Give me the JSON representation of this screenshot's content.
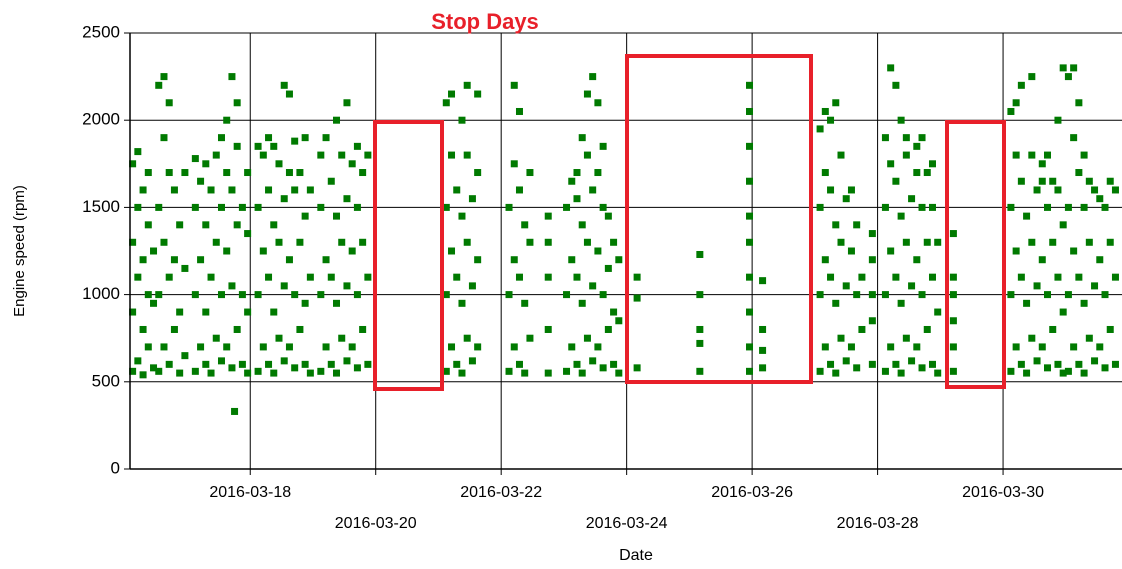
{
  "chart_data": {
    "type": "scatter",
    "title": "Stop Days",
    "x_label": "Date",
    "y_label": "Engine speed (rpm)",
    "color": "#007a00",
    "grid": true,
    "xlim": [
      "2016-03-16T02:00",
      "2016-03-31T21:30"
    ],
    "xticks": [
      "2016-03-18",
      "2016-03-20",
      "2016-03-22",
      "2016-03-24",
      "2016-03-26",
      "2016-03-28",
      "2016-03-30"
    ],
    "ylim": [
      0,
      2500
    ],
    "yticks": [
      0,
      500,
      1000,
      1500,
      2000,
      2500
    ],
    "x": [
      "2016-03-16T03:00",
      "2016-03-16T03:00",
      "2016-03-16T03:00",
      "2016-03-16T03:00",
      "2016-03-16T05:00",
      "2016-03-16T05:00",
      "2016-03-16T05:00",
      "2016-03-16T05:00",
      "2016-03-16T07:00",
      "2016-03-16T07:00",
      "2016-03-16T07:00",
      "2016-03-16T07:00",
      "2016-03-16T09:00",
      "2016-03-16T09:00",
      "2016-03-16T09:00",
      "2016-03-16T09:00",
      "2016-03-16T11:00",
      "2016-03-16T11:00",
      "2016-03-16T11:00",
      "2016-03-16T13:00",
      "2016-03-16T13:00",
      "2016-03-16T13:00",
      "2016-03-16T13:00",
      "2016-03-16T15:00",
      "2016-03-16T15:00",
      "2016-03-16T15:00",
      "2016-03-16T15:00",
      "2016-03-16T17:00",
      "2016-03-16T17:00",
      "2016-03-16T17:00",
      "2016-03-16T17:00",
      "2016-03-16T19:00",
      "2016-03-16T19:00",
      "2016-03-16T19:00",
      "2016-03-16T21:00",
      "2016-03-16T21:00",
      "2016-03-16T21:00",
      "2016-03-16T23:00",
      "2016-03-16T23:00",
      "2016-03-16T23:00",
      "2016-03-17T03:00",
      "2016-03-17T03:00",
      "2016-03-17T03:00",
      "2016-03-17T03:00",
      "2016-03-17T05:00",
      "2016-03-17T05:00",
      "2016-03-17T05:00",
      "2016-03-17T07:00",
      "2016-03-17T07:00",
      "2016-03-17T07:00",
      "2016-03-17T07:00",
      "2016-03-17T09:00",
      "2016-03-17T09:00",
      "2016-03-17T09:00",
      "2016-03-17T11:00",
      "2016-03-17T11:00",
      "2016-03-17T11:00",
      "2016-03-17T13:00",
      "2016-03-17T13:00",
      "2016-03-17T13:00",
      "2016-03-17T13:00",
      "2016-03-17T15:00",
      "2016-03-17T15:00",
      "2016-03-17T15:00",
      "2016-03-17T15:00",
      "2016-03-17T17:00",
      "2016-03-17T17:00",
      "2016-03-17T17:00",
      "2016-03-17T17:00",
      "2016-03-17T18:00",
      "2016-03-17T19:00",
      "2016-03-17T19:00",
      "2016-03-17T19:00",
      "2016-03-17T19:00",
      "2016-03-17T21:00",
      "2016-03-17T21:00",
      "2016-03-17T21:00",
      "2016-03-17T23:00",
      "2016-03-17T23:00",
      "2016-03-17T23:00",
      "2016-03-17T23:00",
      "2016-03-18T03:00",
      "2016-03-18T03:00",
      "2016-03-18T03:00",
      "2016-03-18T03:00",
      "2016-03-18T05:00",
      "2016-03-18T05:00",
      "2016-03-18T05:00",
      "2016-03-18T07:00",
      "2016-03-18T07:00",
      "2016-03-18T07:00",
      "2016-03-18T07:00",
      "2016-03-18T09:00",
      "2016-03-18T09:00",
      "2016-03-18T09:00",
      "2016-03-18T09:00",
      "2016-03-18T11:00",
      "2016-03-18T11:00",
      "2016-03-18T11:00",
      "2016-03-18T13:00",
      "2016-03-18T13:00",
      "2016-03-18T13:00",
      "2016-03-18T13:00",
      "2016-03-18T15:00",
      "2016-03-18T15:00",
      "2016-03-18T15:00",
      "2016-03-18T15:00",
      "2016-03-18T17:00",
      "2016-03-18T17:00",
      "2016-03-18T17:00",
      "2016-03-18T17:00",
      "2016-03-18T19:00",
      "2016-03-18T19:00",
      "2016-03-18T19:00",
      "2016-03-18T21:00",
      "2016-03-18T21:00",
      "2016-03-18T21:00",
      "2016-03-18T21:00",
      "2016-03-18T23:00",
      "2016-03-18T23:00",
      "2016-03-18T23:00",
      "2016-03-19T03:00",
      "2016-03-19T03:00",
      "2016-03-19T03:00",
      "2016-03-19T03:00",
      "2016-03-19T05:00",
      "2016-03-19T05:00",
      "2016-03-19T05:00",
      "2016-03-19T07:00",
      "2016-03-19T07:00",
      "2016-03-19T07:00",
      "2016-03-19T09:00",
      "2016-03-19T09:00",
      "2016-03-19T09:00",
      "2016-03-19T09:00",
      "2016-03-19T11:00",
      "2016-03-19T11:00",
      "2016-03-19T11:00",
      "2016-03-19T13:00",
      "2016-03-19T13:00",
      "2016-03-19T13:00",
      "2016-03-19T13:00",
      "2016-03-19T15:00",
      "2016-03-19T15:00",
      "2016-03-19T15:00",
      "2016-03-19T17:00",
      "2016-03-19T17:00",
      "2016-03-19T17:00",
      "2016-03-19T17:00",
      "2016-03-19T19:00",
      "2016-03-19T19:00",
      "2016-03-19T19:00",
      "2016-03-19T21:00",
      "2016-03-19T21:00",
      "2016-03-19T21:00",
      "2016-03-21T03:00",
      "2016-03-21T03:00",
      "2016-03-21T03:00",
      "2016-03-21T03:00",
      "2016-03-21T05:00",
      "2016-03-21T05:00",
      "2016-03-21T05:00",
      "2016-03-21T05:00",
      "2016-03-21T07:00",
      "2016-03-21T07:00",
      "2016-03-21T07:00",
      "2016-03-21T09:00",
      "2016-03-21T09:00",
      "2016-03-21T09:00",
      "2016-03-21T09:00",
      "2016-03-21T11:00",
      "2016-03-21T11:00",
      "2016-03-21T11:00",
      "2016-03-21T11:00",
      "2016-03-21T13:00",
      "2016-03-21T13:00",
      "2016-03-21T13:00",
      "2016-03-21T15:00",
      "2016-03-21T15:00",
      "2016-03-21T15:00",
      "2016-03-21T15:00",
      "2016-03-22T03:00",
      "2016-03-22T03:00",
      "2016-03-22T03:00",
      "2016-03-22T05:00",
      "2016-03-22T05:00",
      "2016-03-22T05:00",
      "2016-03-22T05:00",
      "2016-03-22T07:00",
      "2016-03-22T07:00",
      "2016-03-22T07:00",
      "2016-03-22T07:00",
      "2016-03-22T09:00",
      "2016-03-22T09:00",
      "2016-03-22T09:00",
      "2016-03-22T11:00",
      "2016-03-22T11:00",
      "2016-03-22T11:00",
      "2016-03-22T18:00",
      "2016-03-22T18:00",
      "2016-03-22T18:00",
      "2016-03-22T18:00",
      "2016-03-22T18:00",
      "2016-03-23T01:00",
      "2016-03-23T01:00",
      "2016-03-23T01:00",
      "2016-03-23T03:00",
      "2016-03-23T03:00",
      "2016-03-23T03:00",
      "2016-03-23T05:00",
      "2016-03-23T05:00",
      "2016-03-23T05:00",
      "2016-03-23T05:00",
      "2016-03-23T07:00",
      "2016-03-23T07:00",
      "2016-03-23T07:00",
      "2016-03-23T07:00",
      "2016-03-23T09:00",
      "2016-03-23T09:00",
      "2016-03-23T09:00",
      "2016-03-23T09:00",
      "2016-03-23T11:00",
      "2016-03-23T11:00",
      "2016-03-23T11:00",
      "2016-03-23T11:00",
      "2016-03-23T13:00",
      "2016-03-23T13:00",
      "2016-03-23T13:00",
      "2016-03-23T13:00",
      "2016-03-23T15:00",
      "2016-03-23T15:00",
      "2016-03-23T15:00",
      "2016-03-23T15:00",
      "2016-03-23T17:00",
      "2016-03-23T17:00",
      "2016-03-23T17:00",
      "2016-03-23T19:00",
      "2016-03-23T19:00",
      "2016-03-23T19:00",
      "2016-03-23T21:00",
      "2016-03-23T21:00",
      "2016-03-23T21:00",
      "2016-03-24T04:00",
      "2016-03-24T04:00",
      "2016-03-24T04:00",
      "2016-03-25T04:00",
      "2016-03-25T04:00",
      "2016-03-25T04:00",
      "2016-03-25T04:00",
      "2016-03-25T04:00",
      "2016-03-25T23:00",
      "2016-03-25T23:00",
      "2016-03-25T23:00",
      "2016-03-25T23:00",
      "2016-03-25T23:00",
      "2016-03-25T23:00",
      "2016-03-25T23:00",
      "2016-03-25T23:00",
      "2016-03-25T23:00",
      "2016-03-25T23:00",
      "2016-03-26T04:00",
      "2016-03-26T04:00",
      "2016-03-26T04:00",
      "2016-03-26T04:00",
      "2016-03-27T02:00",
      "2016-03-27T02:00",
      "2016-03-27T02:00",
      "2016-03-27T02:00",
      "2016-03-27T04:00",
      "2016-03-27T04:00",
      "2016-03-27T04:00",
      "2016-03-27T04:00",
      "2016-03-27T06:00",
      "2016-03-27T06:00",
      "2016-03-27T06:00",
      "2016-03-27T06:00",
      "2016-03-27T08:00",
      "2016-03-27T08:00",
      "2016-03-27T08:00",
      "2016-03-27T08:00",
      "2016-03-27T10:00",
      "2016-03-27T10:00",
      "2016-03-27T10:00",
      "2016-03-27T12:00",
      "2016-03-27T12:00",
      "2016-03-27T12:00",
      "2016-03-27T14:00",
      "2016-03-27T14:00",
      "2016-03-27T14:00",
      "2016-03-27T16:00",
      "2016-03-27T16:00",
      "2016-03-27T16:00",
      "2016-03-27T18:00",
      "2016-03-27T18:00",
      "2016-03-27T22:00",
      "2016-03-27T22:00",
      "2016-03-27T22:00",
      "2016-03-27T22:00",
      "2016-03-27T22:00",
      "2016-03-28T03:00",
      "2016-03-28T03:00",
      "2016-03-28T03:00",
      "2016-03-28T03:00",
      "2016-03-28T05:00",
      "2016-03-28T05:00",
      "2016-03-28T05:00",
      "2016-03-28T05:00",
      "2016-03-28T07:00",
      "2016-03-28T07:00",
      "2016-03-28T07:00",
      "2016-03-28T07:00",
      "2016-03-28T09:00",
      "2016-03-28T09:00",
      "2016-03-28T09:00",
      "2016-03-28T09:00",
      "2016-03-28T11:00",
      "2016-03-28T11:00",
      "2016-03-28T11:00",
      "2016-03-28T11:00",
      "2016-03-28T13:00",
      "2016-03-28T13:00",
      "2016-03-28T13:00",
      "2016-03-28T15:00",
      "2016-03-28T15:00",
      "2016-03-28T15:00",
      "2016-03-28T15:00",
      "2016-03-28T17:00",
      "2016-03-28T17:00",
      "2016-03-28T17:00",
      "2016-03-28T17:00",
      "2016-03-28T19:00",
      "2016-03-28T19:00",
      "2016-03-28T19:00",
      "2016-03-28T21:00",
      "2016-03-28T21:00",
      "2016-03-28T21:00",
      "2016-03-28T21:00",
      "2016-03-28T23:00",
      "2016-03-28T23:00",
      "2016-03-28T23:00",
      "2016-03-29T05:00",
      "2016-03-29T05:00",
      "2016-03-29T05:00",
      "2016-03-29T05:00",
      "2016-03-29T05:00",
      "2016-03-29T05:00",
      "2016-03-30T03:00",
      "2016-03-30T03:00",
      "2016-03-30T03:00",
      "2016-03-30T03:00",
      "2016-03-30T05:00",
      "2016-03-30T05:00",
      "2016-03-30T05:00",
      "2016-03-30T05:00",
      "2016-03-30T07:00",
      "2016-03-30T07:00",
      "2016-03-30T07:00",
      "2016-03-30T07:00",
      "2016-03-30T09:00",
      "2016-03-30T09:00",
      "2016-03-30T09:00",
      "2016-03-30T11:00",
      "2016-03-30T11:00",
      "2016-03-30T11:00",
      "2016-03-30T11:00",
      "2016-03-30T13:00",
      "2016-03-30T13:00",
      "2016-03-30T13:00",
      "2016-03-30T15:00",
      "2016-03-30T15:00",
      "2016-03-30T15:00",
      "2016-03-30T15:00",
      "2016-03-30T17:00",
      "2016-03-30T17:00",
      "2016-03-30T17:00",
      "2016-03-30T17:00",
      "2016-03-30T19:00",
      "2016-03-30T19:00",
      "2016-03-30T19:00",
      "2016-03-30T21:00",
      "2016-03-30T21:00",
      "2016-03-30T21:00",
      "2016-03-30T21:00",
      "2016-03-30T23:00",
      "2016-03-30T23:00",
      "2016-03-30T23:00",
      "2016-03-30T23:00",
      "2016-03-31T01:00",
      "2016-03-31T01:00",
      "2016-03-31T01:00",
      "2016-03-31T01:00",
      "2016-03-31T03:00",
      "2016-03-31T03:00",
      "2016-03-31T03:00",
      "2016-03-31T03:00",
      "2016-03-31T05:00",
      "2016-03-31T05:00",
      "2016-03-31T05:00",
      "2016-03-31T05:00",
      "2016-03-31T07:00",
      "2016-03-31T07:00",
      "2016-03-31T07:00",
      "2016-03-31T07:00",
      "2016-03-31T09:00",
      "2016-03-31T09:00",
      "2016-03-31T09:00",
      "2016-03-31T11:00",
      "2016-03-31T11:00",
      "2016-03-31T11:00",
      "2016-03-31T13:00",
      "2016-03-31T13:00",
      "2016-03-31T13:00",
      "2016-03-31T15:00",
      "2016-03-31T15:00",
      "2016-03-31T15:00",
      "2016-03-31T17:00",
      "2016-03-31T17:00",
      "2016-03-31T17:00",
      "2016-03-31T19:00",
      "2016-03-31T19:00",
      "2016-03-31T19:00"
    ],
    "values": [
      560,
      900,
      1300,
      1750,
      620,
      1100,
      1500,
      1820,
      540,
      800,
      1200,
      1600,
      700,
      1000,
      1400,
      1700,
      580,
      950,
      1250,
      560,
      1000,
      1500,
      2200,
      700,
      1300,
      1900,
      2250,
      600,
      1100,
      1700,
      2100,
      800,
      1200,
      1600,
      550,
      900,
      1400,
      650,
      1150,
      1700,
      560,
      1000,
      1500,
      1780,
      700,
      1200,
      1650,
      600,
      900,
      1400,
      1750,
      550,
      1100,
      1600,
      750,
      1300,
      1800,
      620,
      1000,
      1500,
      1900,
      700,
      1250,
      1700,
      2000,
      580,
      1050,
      1600,
      2250,
      330,
      800,
      1400,
      1850,
      2100,
      600,
      1000,
      1500,
      550,
      900,
      1350,
      1700,
      560,
      1000,
      1500,
      1850,
      700,
      1250,
      1800,
      600,
      1100,
      1600,
      1900,
      550,
      900,
      1400,
      1850,
      750,
      1300,
      1750,
      620,
      1050,
      1550,
      2200,
      700,
      1200,
      1700,
      2150,
      580,
      1000,
      1600,
      1880,
      800,
      1300,
      1700,
      600,
      950,
      1450,
      1900,
      550,
      1100,
      1600,
      560,
      1000,
      1500,
      1800,
      700,
      1200,
      1900,
      600,
      1100,
      1650,
      550,
      950,
      1450,
      2000,
      750,
      1300,
      1800,
      620,
      1050,
      1550,
      2100,
      700,
      1250,
      1750,
      580,
      1000,
      1500,
      1850,
      800,
      1300,
      1700,
      600,
      1100,
      1800,
      560,
      1000,
      1500,
      2100,
      700,
      1250,
      1800,
      2150,
      600,
      1100,
      1600,
      550,
      950,
      1450,
      2000,
      750,
      1300,
      1800,
      2200,
      620,
      1050,
      1550,
      700,
      1200,
      1700,
      2150,
      560,
      1000,
      1500,
      700,
      1200,
      1750,
      2200,
      600,
      1100,
      1600,
      2050,
      550,
      950,
      1400,
      750,
      1300,
      1700,
      550,
      800,
      1100,
      1300,
      1450,
      560,
      1000,
      1500,
      700,
      1200,
      1650,
      600,
      1100,
      1550,
      1700,
      550,
      950,
      1400,
      1900,
      750,
      1300,
      1800,
      2150,
      620,
      1050,
      1600,
      2250,
      700,
      1250,
      1700,
      2100,
      580,
      1000,
      1500,
      1850,
      800,
      1150,
      1450,
      600,
      900,
      1300,
      550,
      850,
      1200,
      580,
      980,
      1100,
      560,
      720,
      800,
      1000,
      1230,
      560,
      700,
      900,
      1100,
      1300,
      1450,
      1650,
      1850,
      2050,
      2200,
      580,
      680,
      800,
      1080,
      560,
      1000,
      1500,
      1950,
      700,
      1200,
      1700,
      2050,
      600,
      1100,
      1600,
      2000,
      550,
      950,
      1400,
      2100,
      750,
      1300,
      1800,
      620,
      1050,
      1550,
      700,
      1250,
      1600,
      580,
      1000,
      1400,
      800,
      1100,
      600,
      850,
      1000,
      1200,
      1350,
      560,
      1000,
      1500,
      1900,
      700,
      1250,
      1750,
      2300,
      600,
      1100,
      1650,
      2200,
      550,
      950,
      1450,
      2000,
      750,
      1300,
      1800,
      1900,
      620,
      1050,
      1550,
      700,
      1200,
      1700,
      1850,
      580,
      1000,
      1500,
      1900,
      800,
      1300,
      1700,
      600,
      1100,
      1500,
      1750,
      550,
      900,
      1300,
      560,
      700,
      850,
      1000,
      1100,
      1350,
      560,
      1000,
      1500,
      2050,
      700,
      1250,
      1800,
      2100,
      600,
      1100,
      1650,
      2200,
      550,
      950,
      1450,
      750,
      1300,
      1800,
      2250,
      620,
      1050,
      1600,
      700,
      1200,
      1650,
      1750,
      580,
      1000,
      1500,
      1800,
      800,
      1300,
      1650,
      600,
      1100,
      1600,
      2000,
      550,
      900,
      1400,
      2300,
      560,
      1000,
      1500,
      2250,
      700,
      1250,
      1900,
      2300,
      600,
      1100,
      1700,
      2100,
      550,
      950,
      1500,
      1800,
      750,
      1300,
      1650,
      620,
      1050,
      1600,
      700,
      1200,
      1550,
      580,
      1000,
      1500,
      800,
      1300,
      1650,
      600,
      1100,
      1600
    ]
  }
}
